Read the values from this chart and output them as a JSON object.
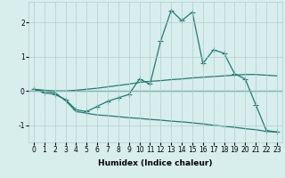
{
  "xlabel": "Humidex (Indice chaleur)",
  "x": [
    0,
    1,
    2,
    3,
    4,
    5,
    6,
    7,
    8,
    9,
    10,
    11,
    12,
    13,
    14,
    15,
    16,
    17,
    18,
    19,
    20,
    21,
    22,
    23
  ],
  "line_main": [
    0.05,
    -0.05,
    -0.1,
    -0.25,
    -0.55,
    -0.6,
    -0.45,
    -0.3,
    -0.2,
    -0.1,
    0.35,
    0.2,
    1.45,
    2.35,
    2.05,
    2.3,
    0.8,
    1.2,
    1.1,
    0.5,
    0.35,
    -0.4,
    -1.15,
    -1.2
  ],
  "line_upper": [
    0.05,
    0.02,
    0.0,
    0.0,
    0.02,
    0.05,
    0.08,
    0.12,
    0.16,
    0.2,
    0.25,
    0.28,
    0.3,
    0.33,
    0.35,
    0.38,
    0.4,
    0.42,
    0.44,
    0.46,
    0.48,
    0.48,
    0.46,
    0.44
  ],
  "line_lower": [
    0.05,
    0.0,
    -0.05,
    -0.28,
    -0.6,
    -0.65,
    -0.7,
    -0.72,
    -0.75,
    -0.78,
    -0.8,
    -0.83,
    -0.85,
    -0.88,
    -0.9,
    -0.93,
    -0.96,
    -1.0,
    -1.03,
    -1.06,
    -1.1,
    -1.13,
    -1.18,
    -1.2
  ],
  "line_color": "#1f7a70",
  "bg_color": "#d8eeed",
  "grid_color": "#b0cece",
  "ylim": [
    -1.5,
    2.6
  ],
  "yticks": [
    -1,
    0,
    1,
    2
  ],
  "markersize": 2.5,
  "linewidth": 0.9,
  "hline_lw": 0.9
}
